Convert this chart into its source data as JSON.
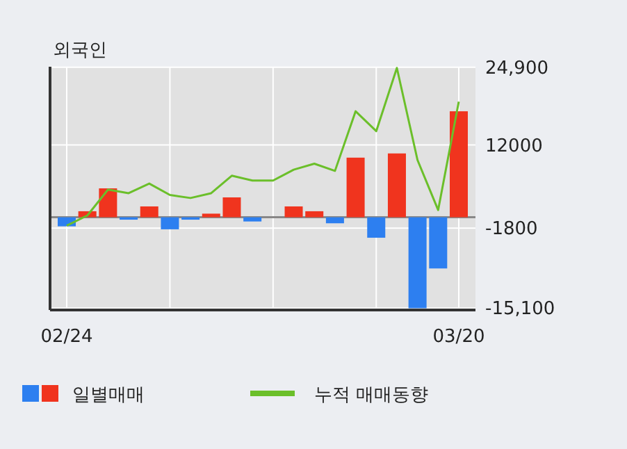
{
  "chart_data": {
    "type": "bar",
    "title": "외국인",
    "categories": [
      "02/24",
      null,
      null,
      null,
      null,
      null,
      null,
      null,
      null,
      null,
      null,
      null,
      null,
      null,
      null,
      null,
      null,
      null,
      null,
      "03/20"
    ],
    "series": [
      {
        "name": "일별매매",
        "colors": [
          "#2d7ff0",
          "#f0341e",
          "#f0341e",
          "#2d7ff0",
          "#f0341e",
          "#2d7ff0",
          "#2d7ff0",
          "#f0341e",
          "#f0341e",
          "#2d7ff0",
          "#f0341e",
          "#f0341e",
          "#f0341e",
          "#2d7ff0",
          "#f0341e",
          "#2d7ff0",
          "#f0341e",
          "#2d7ff0",
          "#2d7ff0",
          "#f0341e"
        ],
        "values": [
          -1500,
          1000,
          4800,
          -400,
          1800,
          -2000,
          -400,
          600,
          3300,
          -700,
          0,
          1800,
          1000,
          -1000,
          9900,
          -3400,
          10600,
          -15100,
          -8500,
          17600
        ]
      },
      {
        "name": "누적 매매동향",
        "type": "line",
        "color": "#6bbf2a",
        "values": [
          -1400,
          300,
          4600,
          4000,
          5600,
          3700,
          3200,
          4000,
          6900,
          6100,
          6100,
          7900,
          8900,
          7700,
          17600,
          14300,
          24800,
          9500,
          1200,
          19200
        ]
      }
    ],
    "ylim": [
      -15400,
      25000
    ],
    "yticks": [
      {
        "value": 24900,
        "label": "24,900"
      },
      12000,
      -1800,
      {
        "value": -15100,
        "label": "-15,100"
      }
    ],
    "grid": true,
    "legend": "bottom"
  }
}
